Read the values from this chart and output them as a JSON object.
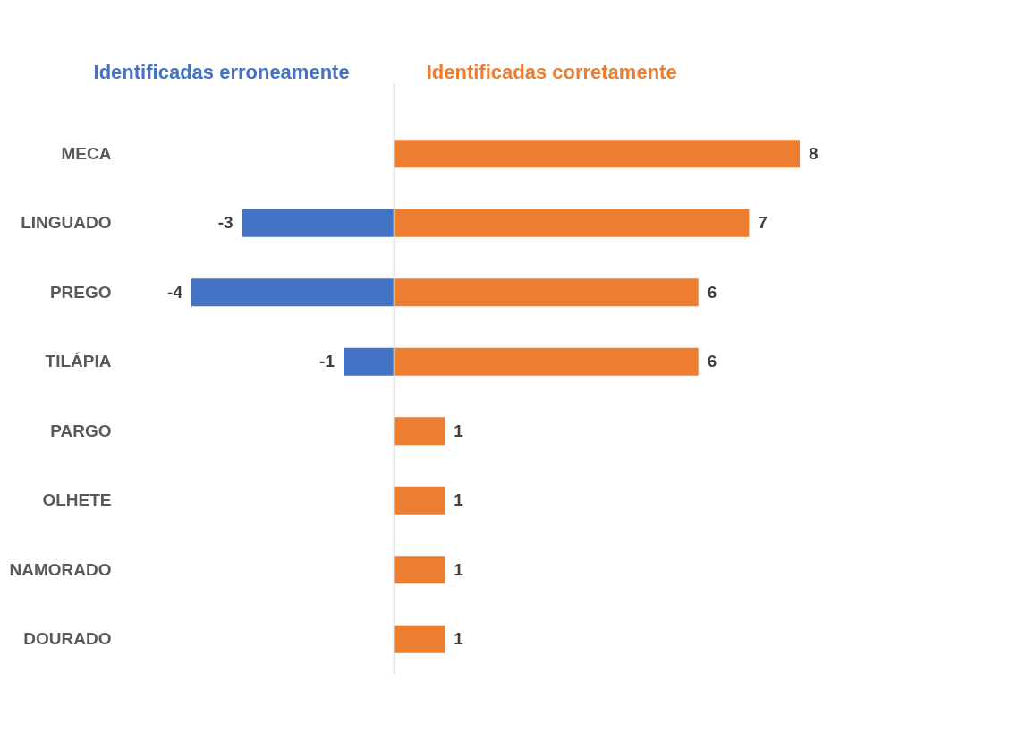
{
  "chart_data": {
    "type": "bar",
    "orientation": "horizontal",
    "categories": [
      "MECA",
      "LINGUADO",
      "PREGO",
      "TILÁPIA",
      "PARGO",
      "OLHETE",
      "NAMORADO",
      "DOURADO"
    ],
    "series": [
      {
        "name": "Identificadas erroneamente",
        "color": "#4472c4",
        "values": [
          null,
          -3,
          -4,
          -1,
          null,
          null,
          null,
          null
        ]
      },
      {
        "name": "Identificadas corretamente",
        "color": "#ed7d31",
        "values": [
          8,
          7,
          6,
          6,
          1,
          1,
          1,
          1
        ]
      }
    ],
    "ref_lines": [
      {
        "axis": "x",
        "value": 0,
        "color": "#d9d9d9"
      }
    ],
    "data_labels": true,
    "tick_labels": "y"
  }
}
